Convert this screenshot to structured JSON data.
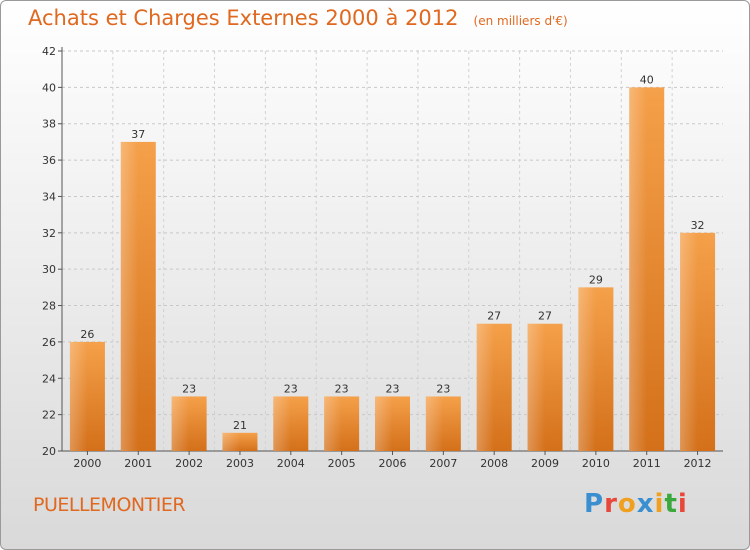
{
  "chart_data": {
    "type": "bar",
    "title": "Achats et Charges Externes 2000 à 2012",
    "subtitle": "(en milliers d'€)",
    "categories": [
      "2000",
      "2001",
      "2002",
      "2003",
      "2004",
      "2005",
      "2006",
      "2007",
      "2008",
      "2009",
      "2010",
      "2011",
      "2012"
    ],
    "values": [
      26,
      37,
      23,
      21,
      23,
      23,
      23,
      23,
      27,
      27,
      29,
      40,
      32
    ],
    "ylim": [
      20,
      42
    ],
    "yticks": [
      "20",
      "22",
      "24",
      "26",
      "28",
      "30",
      "32",
      "34",
      "36",
      "38",
      "40",
      "42"
    ],
    "grid": true,
    "bar_color": "#f08a2b"
  },
  "footer": {
    "commune": "PUELLEMONTIER",
    "logo_text": "Proxiti",
    "logo_colors": [
      "#3a8fd1",
      "#e8483a",
      "#f0a020",
      "#3a8fd1",
      "#f0a020",
      "#3aa83a",
      "#e8483a"
    ]
  }
}
